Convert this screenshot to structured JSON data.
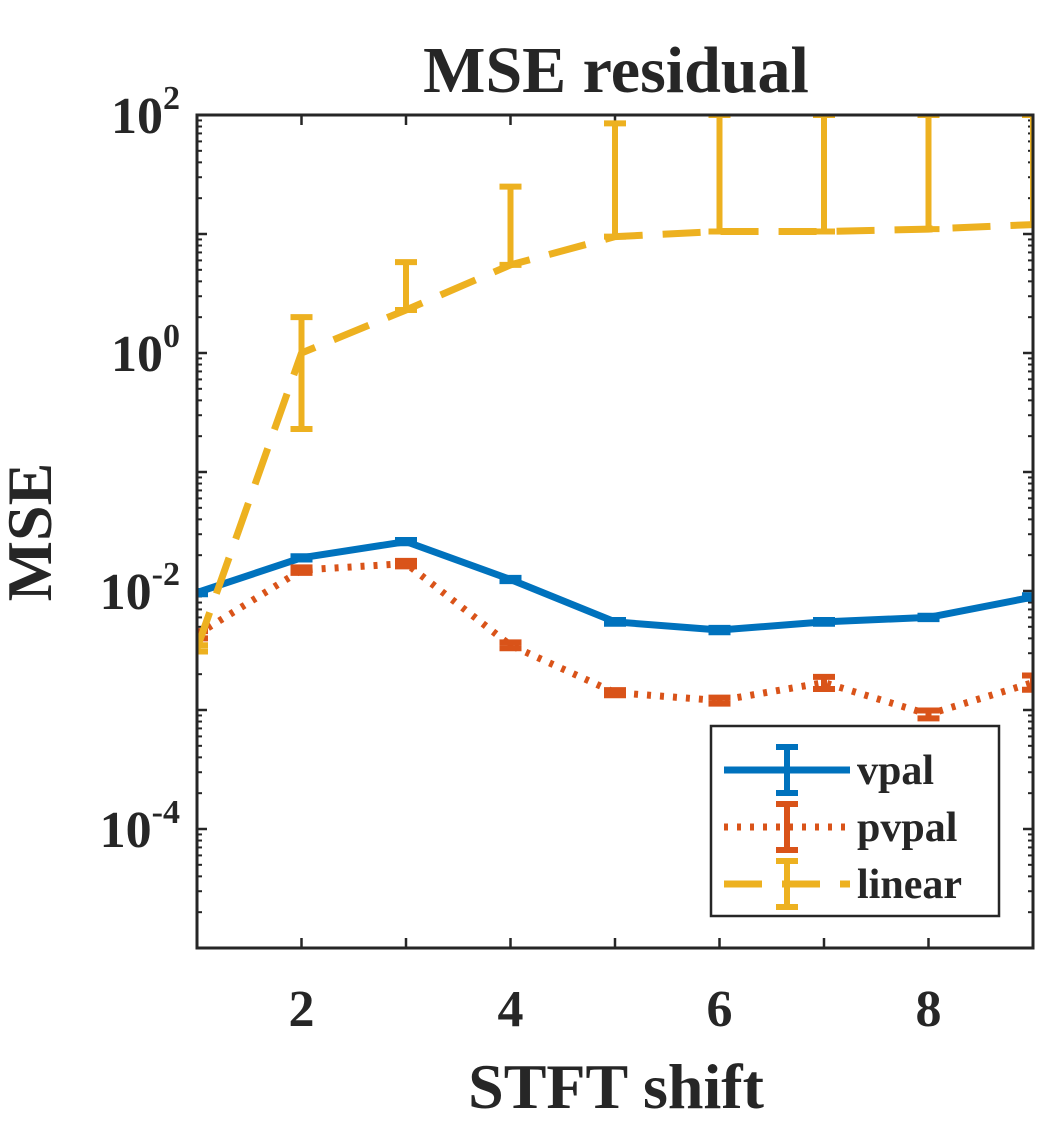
{
  "chart_data": {
    "type": "line",
    "title": "MSE residual",
    "xlabel": "STFT shift",
    "ylabel": "MSE",
    "yscale": "log",
    "xlim": [
      1,
      9
    ],
    "ylim": [
      1e-05,
      100
    ],
    "xticks": [
      {
        "value": 2,
        "label": "2"
      },
      {
        "value": 4,
        "label": "4"
      },
      {
        "value": 6,
        "label": "6"
      },
      {
        "value": 8,
        "label": "8"
      }
    ],
    "yticks": [
      {
        "value": 0.0001,
        "base": "10",
        "exp": "-4"
      },
      {
        "value": 0.01,
        "base": "10",
        "exp": "-2"
      },
      {
        "value": 1,
        "base": "10",
        "exp": "0"
      },
      {
        "value": 100,
        "base": "10",
        "exp": "2"
      }
    ],
    "x": [
      1,
      2,
      3,
      4,
      5,
      6,
      7,
      8,
      9
    ],
    "series": [
      {
        "name": "vpal",
        "color": "#0072BD",
        "style": "solid",
        "values": [
          0.0097,
          0.019,
          0.026,
          0.0125,
          0.0055,
          0.0047,
          0.0055,
          0.006,
          0.0089
        ],
        "err_low": [
          0.0094,
          0.0184,
          0.0252,
          0.0121,
          0.0053,
          0.0045,
          0.0053,
          0.0058,
          0.0086
        ],
        "err_high": [
          0.01,
          0.0196,
          0.0268,
          0.0129,
          0.0057,
          0.0049,
          0.0057,
          0.0062,
          0.0092
        ]
      },
      {
        "name": "pvpal",
        "color": "#D95319",
        "style": "dotted",
        "values": [
          0.0043,
          0.015,
          0.017,
          0.0035,
          0.0014,
          0.0012,
          0.0017,
          0.00092,
          0.0017
        ],
        "err_low": [
          0.004,
          0.0142,
          0.0161,
          0.0033,
          0.00133,
          0.00113,
          0.0015,
          0.00085,
          0.00148
        ],
        "err_high": [
          0.0046,
          0.0158,
          0.0179,
          0.0037,
          0.00147,
          0.00127,
          0.0019,
          0.00099,
          0.00195
        ]
      },
      {
        "name": "linear",
        "color": "#EDB120",
        "style": "dashed",
        "values": [
          0.0033,
          1.0,
          2.3,
          5.5,
          9.5,
          10.5,
          10.5,
          11.0,
          12.0
        ],
        "err_low": [
          0.0031,
          0.23,
          2.3,
          5.5,
          9.5,
          10.5,
          10.5,
          11.0,
          12.0
        ],
        "err_high": [
          0.0035,
          2.0,
          5.8,
          25,
          85,
          100,
          100,
          100,
          100
        ]
      }
    ],
    "legend": {
      "location": "bottom-right",
      "entries": [
        "vpal",
        "pvpal",
        "linear"
      ]
    }
  }
}
